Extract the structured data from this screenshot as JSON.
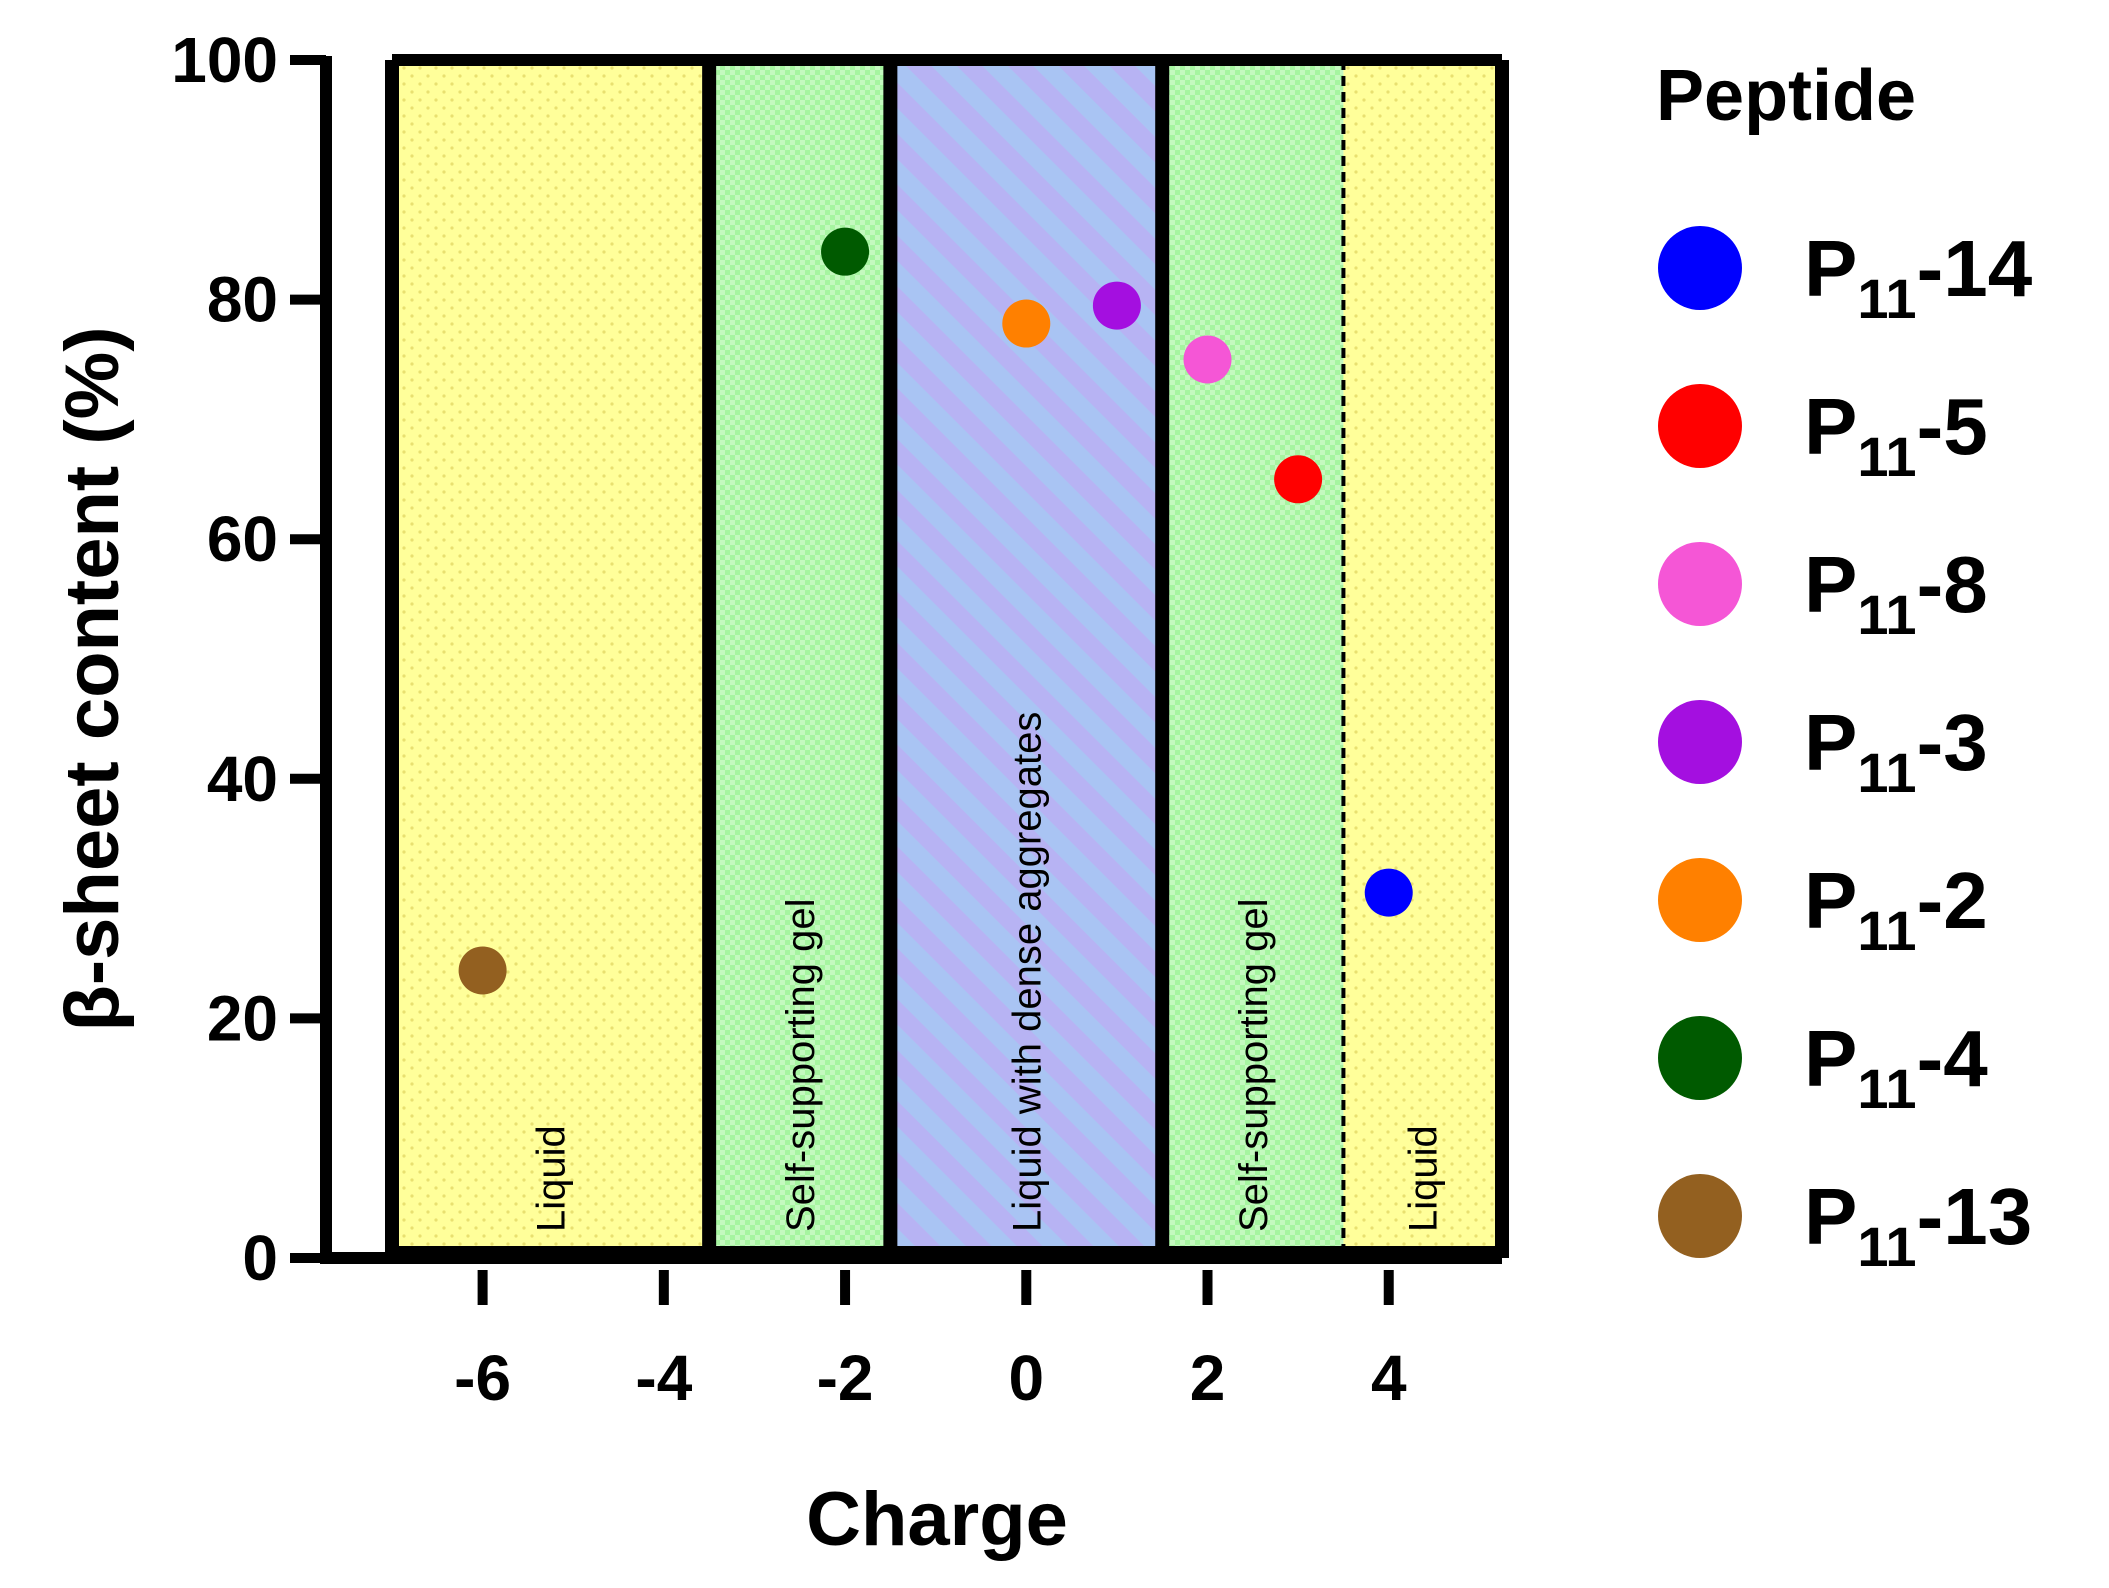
{
  "chart_data": {
    "type": "scatter",
    "xlabel": "Charge",
    "ylabel": "β-sheet content (%)",
    "xlim": [
      -7,
      5.25
    ],
    "ylim": [
      0,
      100
    ],
    "xticks": [
      -6,
      -4,
      -2,
      0,
      2,
      4
    ],
    "yticks": [
      0,
      20,
      40,
      60,
      80,
      100
    ],
    "regions": [
      {
        "label": "Liquid",
        "x_start": -7,
        "x_end": -3.5,
        "pattern": "dots",
        "color": "#ffff9a"
      },
      {
        "label": "Self-supporting gel",
        "x_start": -3.5,
        "x_end": -1.5,
        "pattern": "checker",
        "color": "#a6f5a0"
      },
      {
        "label": "Liquid with dense aggregates",
        "x_start": -1.5,
        "x_end": 1.5,
        "pattern": "stripes",
        "color": "#b3b3f5"
      },
      {
        "label": "Self-supporting gel",
        "x_start": 1.5,
        "x_end": 3.5,
        "pattern": "checker",
        "color": "#a6f5a0"
      },
      {
        "label": "Liquid",
        "x_start": 3.5,
        "x_end": 5.25,
        "pattern": "dots",
        "color": "#ffff9a"
      }
    ],
    "series": [
      {
        "name": "P11-14",
        "base": "P",
        "sub": "11",
        "suffix": "-14",
        "color": "#0000ff",
        "x": 4,
        "y": 30.5
      },
      {
        "name": "P11-5",
        "base": "P",
        "sub": "11",
        "suffix": "-5",
        "color": "#ff0000",
        "x": 3,
        "y": 65
      },
      {
        "name": "P11-8",
        "base": "P",
        "sub": "11",
        "suffix": "-8",
        "color": "#f556d6",
        "x": 2,
        "y": 75
      },
      {
        "name": "P11-3",
        "base": "P",
        "sub": "11",
        "suffix": "-3",
        "color": "#a40fe0",
        "x": 1,
        "y": 79.5
      },
      {
        "name": "P11-2",
        "base": "P",
        "sub": "11",
        "suffix": "-2",
        "color": "#ff8000",
        "x": 0,
        "y": 78
      },
      {
        "name": "P11-4",
        "base": "P",
        "sub": "11",
        "suffix": "-4",
        "color": "#005a00",
        "x": -2,
        "y": 84
      },
      {
        "name": "P11-13",
        "base": "P",
        "sub": "11",
        "suffix": "-13",
        "color": "#936020",
        "x": -6,
        "y": 24
      }
    ],
    "legend": {
      "title": "Peptide",
      "position": "right"
    }
  }
}
